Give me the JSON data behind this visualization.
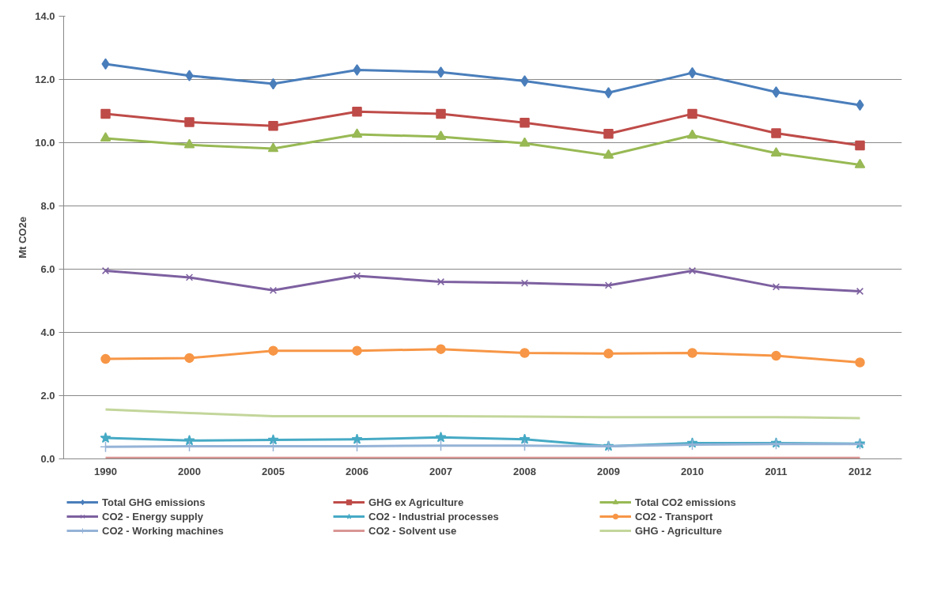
{
  "chart_data": {
    "type": "line",
    "ylabel": "Mt CO2e",
    "categories": [
      "1990",
      "2000",
      "2005",
      "2006",
      "2007",
      "2008",
      "2009",
      "2010",
      "2011",
      "2012"
    ],
    "ylim": [
      0,
      14
    ],
    "yticks": [
      {
        "value": 0,
        "label": "0.0"
      },
      {
        "value": 2,
        "label": "2.0"
      },
      {
        "value": 4,
        "label": "4.0"
      },
      {
        "value": 6,
        "label": "6.0"
      },
      {
        "value": 8,
        "label": "8.0"
      },
      {
        "value": 10,
        "label": "10.0"
      },
      {
        "value": 12,
        "label": "12.0"
      },
      {
        "value": 14,
        "label": "14.0"
      }
    ],
    "grid": "y",
    "legend": "bottom",
    "series": [
      {
        "name": "Total GHG emissions",
        "color": "#4a7ebb",
        "marker": "diamond",
        "values": [
          12.49,
          12.12,
          11.86,
          12.3,
          12.23,
          11.95,
          11.58,
          12.21,
          11.6,
          11.19
        ]
      },
      {
        "name": "GHG ex Agriculture",
        "color": "#be4b48",
        "marker": "square",
        "values": [
          10.91,
          10.65,
          10.53,
          10.98,
          10.91,
          10.63,
          10.28,
          10.91,
          10.3,
          9.91
        ]
      },
      {
        "name": "Total CO2 emissions",
        "color": "#98b954",
        "marker": "triangle",
        "values": [
          10.14,
          9.93,
          9.81,
          10.26,
          10.19,
          9.98,
          9.6,
          10.23,
          9.67,
          9.3
        ]
      },
      {
        "name": "CO2 - Energy supply",
        "color": "#7d60a0",
        "marker": "x",
        "values": [
          5.95,
          5.74,
          5.33,
          5.79,
          5.6,
          5.56,
          5.49,
          5.95,
          5.44,
          5.3
        ]
      },
      {
        "name": "CO2 - Industrial processes",
        "color": "#46aac5",
        "marker": "star",
        "values": [
          0.66,
          0.58,
          0.6,
          0.62,
          0.68,
          0.62,
          0.4,
          0.5,
          0.5,
          0.48
        ]
      },
      {
        "name": "CO2 - Transport",
        "color": "#f79646",
        "marker": "circle",
        "values": [
          3.16,
          3.19,
          3.42,
          3.42,
          3.47,
          3.35,
          3.33,
          3.35,
          3.26,
          3.05
        ]
      },
      {
        "name": "CO2 - Working machines",
        "color": "#95b3d7",
        "marker": "cross",
        "values": [
          0.38,
          0.4,
          0.4,
          0.4,
          0.42,
          0.42,
          0.4,
          0.45,
          0.47,
          0.47
        ]
      },
      {
        "name": "CO2 - Solvent use",
        "color": "#d99694",
        "marker": "none",
        "values": [
          0.03,
          0.03,
          0.03,
          0.03,
          0.03,
          0.03,
          0.03,
          0.03,
          0.03,
          0.03
        ]
      },
      {
        "name": "GHG - Agriculture",
        "color": "#c3d69b",
        "marker": "none",
        "values": [
          1.56,
          1.45,
          1.35,
          1.35,
          1.35,
          1.34,
          1.32,
          1.32,
          1.32,
          1.29
        ]
      }
    ]
  }
}
